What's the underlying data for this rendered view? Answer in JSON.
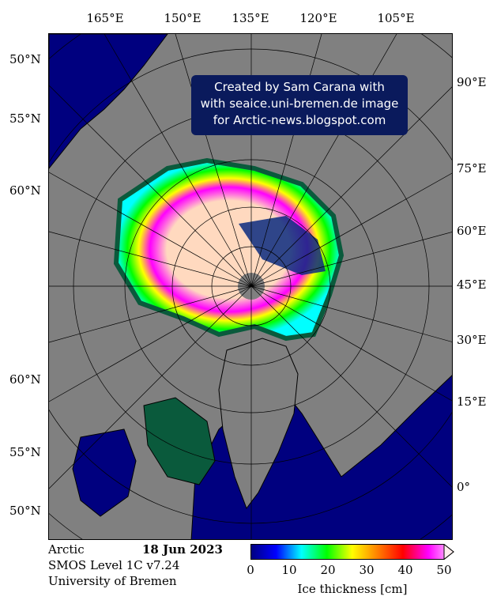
{
  "map": {
    "top_longitudes": [
      "165°E",
      "150°E",
      "135°E",
      "120°E",
      "105°E"
    ],
    "left_latitudes": [
      "50°N",
      "55°N",
      "60°N",
      "60°N",
      "55°N",
      "50°N"
    ],
    "right_longitudes": [
      "90°E",
      "75°E",
      "60°E",
      "45°E",
      "30°E",
      "15°E",
      "0°"
    ],
    "colors": {
      "land": "#808080",
      "open_water": "#00007f",
      "thick_ice": "#ffd9bf",
      "coast": "#000000"
    }
  },
  "credit": {
    "line1": "Created by Sam Carana with",
    "line2": "with seaice.uni-bremen.de image",
    "line3": "for Arctic-news.blogspot.com"
  },
  "footer": {
    "region": "Arctic",
    "date": "18 Jun 2023",
    "product": "SMOS Level 1C v7.24",
    "institution": "University of Bremen"
  },
  "colorbar": {
    "ticks": [
      "0",
      "10",
      "20",
      "30",
      "40",
      "50"
    ],
    "label": "Ice thickness [cm]",
    "stops": [
      "#00007f",
      "#0000ff",
      "#00ffff",
      "#00ff00",
      "#ffff00",
      "#ff8000",
      "#ff0000",
      "#ff00ff",
      "#ffd9ff"
    ]
  }
}
